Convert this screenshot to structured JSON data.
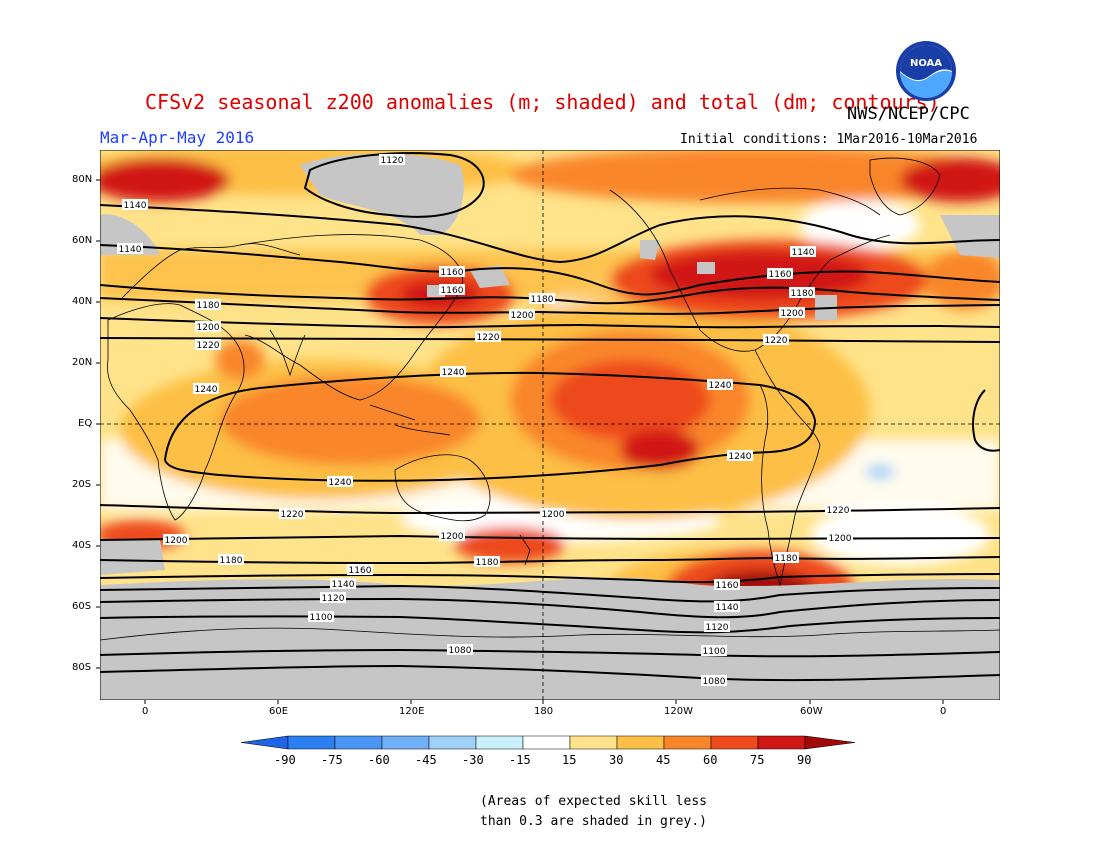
{
  "header": {
    "title": "CFSv2 seasonal z200 anomalies (m; shaded) and total (dm; contours)",
    "agency": "NWS/NCEP/CPC",
    "season": "Mar-Apr-May 2016",
    "initial_conditions": "Initial conditions: 1Mar2016-10Mar2016",
    "logo_text": "NOAA"
  },
  "axes": {
    "lat_labels": [
      "80N",
      "60N",
      "40N",
      "20N",
      "EQ",
      "20S",
      "40S",
      "60S",
      "80S"
    ],
    "lon_labels": [
      "0",
      "60E",
      "120E",
      "180",
      "120W",
      "60W",
      "0"
    ]
  },
  "colorbar": {
    "ticks": [
      "-90",
      "-75",
      "-60",
      "-45",
      "-30",
      "-15",
      "15",
      "30",
      "45",
      "60",
      "75",
      "90"
    ],
    "colors": [
      "#1e64e6",
      "#2b7ff0",
      "#4a96f5",
      "#6fb0f7",
      "#9fd0f8",
      "#c9f0fb",
      "#ffffff",
      "#ffe38a",
      "#fdbf45",
      "#f9862a",
      "#ee4a1c",
      "#d11616",
      "#a30808"
    ]
  },
  "contours": {
    "labels": [
      "1120",
      "1140",
      "1160",
      "1140",
      "1160",
      "1180",
      "1200",
      "1180",
      "1220",
      "1200",
      "1220",
      "1240",
      "1240",
      "1240",
      "1240",
      "1220",
      "1220",
      "1200",
      "1200",
      "1180",
      "1180",
      "1160",
      "1140",
      "1120",
      "1100",
      "1080",
      "1160",
      "1140",
      "1120",
      "1100",
      "1080",
      "1160",
      "1180",
      "1140",
      "1200",
      "1220",
      "1240",
      "1200",
      "1180",
      "1200",
      "1220",
      "1140"
    ]
  },
  "legend_note": {
    "line1": "(Areas of expected skill less",
    "line2": "than 0.3 are shaded in grey.)"
  }
}
